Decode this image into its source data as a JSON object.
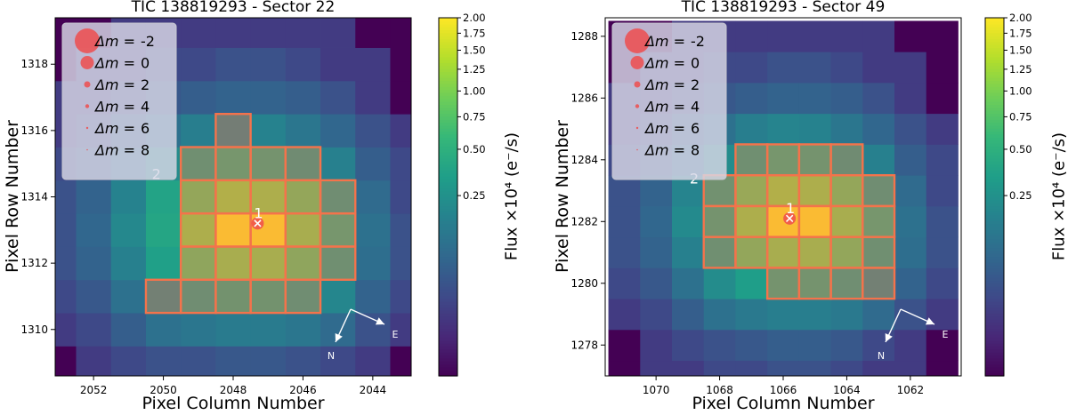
{
  "chart_data": [
    {
      "type": "heatmap",
      "title": "TIC 138819293 - Sector 22",
      "xlabel": "Pixel Column Number",
      "ylabel": "Pixel Row Number",
      "x_reversed": true,
      "xlim": [
        2053.1,
        2042.9
      ],
      "ylim": [
        1308.6,
        1319.4
      ],
      "xticks": [
        2052,
        2050,
        2048,
        2046,
        2044
      ],
      "yticks": [
        1310,
        1312,
        1314,
        1316,
        1318
      ],
      "grid": false,
      "colorbar": {
        "label": "Flux ×10⁴ (e⁻/s)",
        "ticks": [
          "0.25",
          "0.50",
          "0.75",
          "1.00",
          "1.25",
          "1.50",
          "1.75",
          "2.00"
        ],
        "tick_values": [
          0.25,
          0.5,
          0.75,
          1.0,
          1.25,
          1.5,
          1.75,
          2.0
        ],
        "min": 0.0,
        "max": 2.0,
        "scale": "power",
        "colormap": "viridis"
      },
      "pixel_flux": {
        "columns": [
          2053,
          2052,
          2051,
          2050,
          2049,
          2048,
          2047,
          2046,
          2045,
          2044,
          2043
        ],
        "rows": [
          1309,
          1310,
          1311,
          1312,
          1313,
          1314,
          1315,
          1316,
          1317,
          1318,
          1319
        ],
        "values": [
          [
            0.0,
            0.01,
            0.02,
            0.03,
            0.03,
            0.04,
            0.04,
            0.03,
            0.02,
            0.01,
            0.0
          ],
          [
            0.01,
            0.02,
            0.05,
            0.1,
            0.12,
            0.14,
            0.14,
            0.12,
            0.08,
            0.03,
            0.01
          ],
          [
            0.02,
            0.04,
            0.1,
            0.2,
            0.33,
            0.4,
            0.4,
            0.33,
            0.19,
            0.06,
            0.02
          ],
          [
            0.03,
            0.06,
            0.16,
            0.35,
            0.75,
            1.0,
            1.0,
            0.75,
            0.35,
            0.09,
            0.03
          ],
          [
            0.03,
            0.07,
            0.2,
            0.4,
            1.05,
            2.0,
            2.0,
            1.0,
            0.45,
            0.1,
            0.03
          ],
          [
            0.03,
            0.06,
            0.17,
            0.38,
            0.8,
            1.1,
            1.05,
            0.8,
            0.33,
            0.08,
            0.02
          ],
          [
            0.02,
            0.04,
            0.1,
            0.22,
            0.35,
            0.45,
            0.42,
            0.3,
            0.16,
            0.05,
            0.02
          ],
          [
            0.01,
            0.02,
            0.05,
            0.1,
            0.15,
            0.18,
            0.17,
            0.12,
            0.07,
            0.03,
            0.01
          ],
          [
            0.01,
            0.01,
            0.02,
            0.04,
            0.05,
            0.06,
            0.06,
            0.05,
            0.03,
            0.01,
            0.0
          ],
          [
            0.0,
            0.01,
            0.01,
            0.02,
            0.02,
            0.03,
            0.03,
            0.02,
            0.01,
            0.01,
            0.0
          ],
          [
            0.0,
            0.0,
            0.01,
            0.01,
            0.01,
            0.01,
            0.01,
            0.01,
            0.01,
            0.0,
            0.0
          ]
        ]
      },
      "aperture_pixels": [
        [
          2050,
          1311
        ],
        [
          2049,
          1311
        ],
        [
          2048,
          1311
        ],
        [
          2047,
          1311
        ],
        [
          2046,
          1311
        ],
        [
          2049,
          1312
        ],
        [
          2048,
          1312
        ],
        [
          2047,
          1312
        ],
        [
          2046,
          1312
        ],
        [
          2045,
          1312
        ],
        [
          2049,
          1313
        ],
        [
          2048,
          1313
        ],
        [
          2047,
          1313
        ],
        [
          2046,
          1313
        ],
        [
          2045,
          1313
        ],
        [
          2049,
          1314
        ],
        [
          2048,
          1314
        ],
        [
          2047,
          1314
        ],
        [
          2046,
          1314
        ],
        [
          2045,
          1314
        ],
        [
          2049,
          1315
        ],
        [
          2048,
          1315
        ],
        [
          2047,
          1315
        ],
        [
          2046,
          1315
        ],
        [
          2048,
          1316
        ]
      ],
      "stars": [
        {
          "label": "1",
          "column": 2047.3,
          "row": 1313.2,
          "dm": 0,
          "target": true
        },
        {
          "label": "2",
          "column": 2050.2,
          "row": 1314.7
        }
      ],
      "legend": {
        "position": "top-left",
        "entries": [
          {
            "prefix": "Δm = ",
            "value": "-2",
            "dm": -2
          },
          {
            "prefix": "Δm = ",
            "value": "0",
            "dm": 0
          },
          {
            "prefix": "Δm = ",
            "value": "2",
            "dm": 2
          },
          {
            "prefix": "Δm = ",
            "value": "4",
            "dm": 4
          },
          {
            "prefix": "Δm = ",
            "value": "6",
            "dm": 6
          },
          {
            "prefix": "Δm = ",
            "value": "8",
            "dm": 8
          }
        ]
      },
      "compass": {
        "north": "N",
        "east": "E"
      }
    },
    {
      "type": "heatmap",
      "title": "TIC 138819293 - Sector 49",
      "xlabel": "Pixel Column Number",
      "ylabel": "Pixel Row Number",
      "x_reversed": true,
      "xlim": [
        1071.6,
        1060.4
      ],
      "ylim": [
        1277.0,
        1288.6
      ],
      "xticks": [
        1070,
        1068,
        1066,
        1064,
        1062
      ],
      "yticks": [
        1278,
        1280,
        1282,
        1284,
        1286,
        1288
      ],
      "grid": false,
      "colorbar": {
        "label": "Flux ×10⁴ (e⁻/s)",
        "ticks": [
          "0.25",
          "0.50",
          "0.75",
          "1.00",
          "1.25",
          "1.50",
          "1.75",
          "2.00"
        ],
        "tick_values": [
          0.25,
          0.5,
          0.75,
          1.0,
          1.25,
          1.5,
          1.75,
          2.0
        ],
        "min": 0.0,
        "max": 2.0,
        "scale": "power",
        "colormap": "viridis"
      },
      "pixel_flux": {
        "columns": [
          1071,
          1070,
          1069,
          1068,
          1067,
          1066,
          1065,
          1064,
          1063,
          1062,
          1061
        ],
        "rows": [
          1277,
          1278,
          1279,
          1280,
          1281,
          1282,
          1283,
          1284,
          1285,
          1286,
          1287,
          1288
        ],
        "values": [
          [
            0.0,
            0.01,
            0.01,
            0.02,
            0.02,
            0.03,
            0.03,
            0.02,
            0.01,
            0.01,
            0.0
          ],
          [
            0.0,
            0.01,
            0.02,
            0.03,
            0.04,
            0.05,
            0.05,
            0.04,
            0.02,
            0.01,
            0.0
          ],
          [
            0.01,
            0.02,
            0.05,
            0.1,
            0.13,
            0.15,
            0.15,
            0.13,
            0.08,
            0.03,
            0.01
          ],
          [
            0.02,
            0.04,
            0.1,
            0.22,
            0.34,
            0.42,
            0.42,
            0.34,
            0.2,
            0.06,
            0.02
          ],
          [
            0.03,
            0.06,
            0.16,
            0.35,
            0.78,
            1.0,
            1.0,
            0.78,
            0.35,
            0.09,
            0.03
          ],
          [
            0.03,
            0.07,
            0.21,
            0.42,
            1.05,
            2.0,
            2.0,
            1.0,
            0.45,
            0.1,
            0.03
          ],
          [
            0.03,
            0.06,
            0.18,
            0.38,
            0.85,
            1.1,
            1.05,
            0.8,
            0.33,
            0.08,
            0.02
          ],
          [
            0.02,
            0.04,
            0.1,
            0.22,
            0.35,
            0.45,
            0.42,
            0.3,
            0.16,
            0.05,
            0.02
          ],
          [
            0.01,
            0.02,
            0.05,
            0.1,
            0.15,
            0.18,
            0.17,
            0.12,
            0.07,
            0.03,
            0.01
          ],
          [
            0.01,
            0.01,
            0.02,
            0.04,
            0.05,
            0.06,
            0.06,
            0.05,
            0.03,
            0.01,
            0.0
          ],
          [
            0.0,
            0.01,
            0.01,
            0.02,
            0.02,
            0.03,
            0.03,
            0.02,
            0.01,
            0.01,
            0.0
          ],
          [
            0.0,
            0.0,
            0.01,
            0.01,
            0.01,
            0.01,
            0.01,
            0.01,
            0.01,
            0.0,
            0.0
          ]
        ]
      },
      "aperture_pixels": [
        [
          1066,
          1280
        ],
        [
          1065,
          1280
        ],
        [
          1064,
          1280
        ],
        [
          1063,
          1280
        ],
        [
          1068,
          1281
        ],
        [
          1067,
          1281
        ],
        [
          1066,
          1281
        ],
        [
          1065,
          1281
        ],
        [
          1064,
          1281
        ],
        [
          1063,
          1281
        ],
        [
          1068,
          1282
        ],
        [
          1067,
          1282
        ],
        [
          1066,
          1282
        ],
        [
          1065,
          1282
        ],
        [
          1064,
          1282
        ],
        [
          1063,
          1282
        ],
        [
          1068,
          1283
        ],
        [
          1067,
          1283
        ],
        [
          1066,
          1283
        ],
        [
          1065,
          1283
        ],
        [
          1064,
          1283
        ],
        [
          1063,
          1283
        ],
        [
          1067,
          1284
        ],
        [
          1066,
          1284
        ],
        [
          1065,
          1284
        ],
        [
          1064,
          1284
        ]
      ],
      "stars": [
        {
          "label": "1",
          "column": 1065.8,
          "row": 1282.1,
          "dm": 0,
          "target": true
        },
        {
          "label": "2",
          "column": 1068.8,
          "row": 1283.4
        }
      ],
      "legend": {
        "position": "top-left",
        "entries": [
          {
            "prefix": "Δm = ",
            "value": "-2",
            "dm": -2
          },
          {
            "prefix": "Δm = ",
            "value": "0",
            "dm": 0
          },
          {
            "prefix": "Δm = ",
            "value": "2",
            "dm": 2
          },
          {
            "prefix": "Δm = ",
            "value": "4",
            "dm": 4
          },
          {
            "prefix": "Δm = ",
            "value": "6",
            "dm": 6
          },
          {
            "prefix": "Δm = ",
            "value": "8",
            "dm": 8
          }
        ]
      },
      "compass": {
        "north": "N",
        "east": "E"
      }
    }
  ],
  "colors": {
    "aperture": "#f4734b",
    "star_marker": "#ef4d4d",
    "legend_marker": "#ef4d4d",
    "legend_background": "#d8d8e6",
    "axis": "#000000",
    "annotation_text": "#ffffff"
  }
}
